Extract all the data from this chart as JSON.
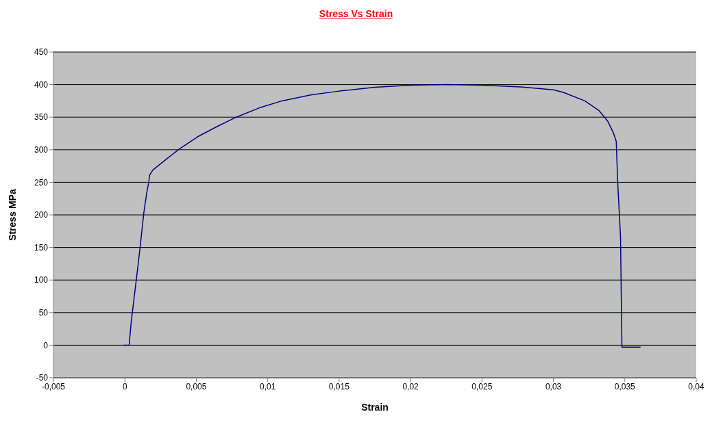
{
  "chart_data": {
    "type": "line",
    "title": "Stress Vs Strain",
    "xlabel": "Strain",
    "ylabel": "Stress MPa",
    "series": [
      {
        "color": "#000080",
        "x": [
          -0.0001,
          0.0002,
          0.0003,
          0.00044,
          0.00067,
          0.00087,
          0.00106,
          0.00132,
          0.00153,
          0.00168,
          0.00173,
          0.00196,
          0.00293,
          0.0038,
          0.0051,
          0.0064,
          0.0078,
          0.0095,
          0.011,
          0.013,
          0.015,
          0.0175,
          0.02,
          0.0225,
          0.025,
          0.028,
          0.03,
          0.0307,
          0.0322,
          0.0332,
          0.0338,
          0.0342,
          0.0344,
          0.0345,
          0.0347,
          0.03475,
          0.0348,
          0.0361
        ],
        "values": [
          0,
          0,
          0,
          35,
          77,
          113,
          149,
          202,
          234,
          251,
          261,
          269,
          286,
          301,
          320,
          335,
          350,
          365,
          375,
          384,
          390,
          396,
          399,
          400,
          399,
          396,
          392,
          388,
          375,
          360,
          344,
          326,
          313,
          251,
          166,
          77,
          -3,
          -3
        ]
      }
    ],
    "xlim": [
      -0.005,
      0.04
    ],
    "xticks": [
      {
        "value": -0.005,
        "label": "-0,005"
      },
      0,
      {
        "value": 0.005,
        "label": "0,005"
      },
      {
        "value": 0.01,
        "label": "0,01"
      },
      {
        "value": 0.015,
        "label": "0,015"
      },
      {
        "value": 0.02,
        "label": "0,02"
      },
      {
        "value": 0.025,
        "label": "0,025"
      },
      {
        "value": 0.03,
        "label": "0,03"
      },
      {
        "value": 0.035,
        "label": "0,035"
      },
      {
        "value": 0.04,
        "label": "0,04"
      }
    ],
    "ylim": [
      -50,
      450
    ],
    "yticks": [
      -50,
      0,
      50,
      100,
      150,
      200,
      250,
      300,
      350,
      400,
      450
    ],
    "grid": "y",
    "marker": "none",
    "line_style": "solid"
  }
}
